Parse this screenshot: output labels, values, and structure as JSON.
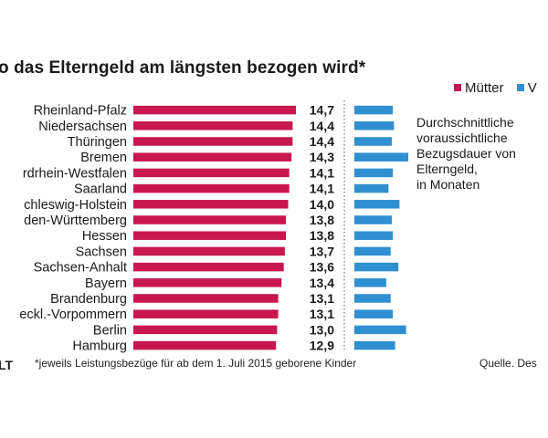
{
  "title": "o das Elterngeld am längsten bezogen wird*",
  "subtitle": "Durchschnittliche\nvoraussichtliche\nBezugsdauer von\nElterngeld,\nin Monaten",
  "legend": [
    {
      "label": "Mütter",
      "color": "#c8174f"
    },
    {
      "label": "V",
      "color": "#2f8fd0"
    }
  ],
  "logo": "LT",
  "footnote": "*jeweils Leistungsbezüge für ab dem 1. Juli 2015 geborene Kinder",
  "source": "Quelle. Des",
  "chart_data": {
    "type": "bar",
    "title": "o das Elterngeld am längsten bezogen wird*",
    "categories": [
      "Rheinland-Pfalz",
      "Niedersachsen",
      "Thüringen",
      "Bremen",
      "rdrhein-Westfalen",
      "Saarland",
      "chleswig-Holstein",
      "den-Württemberg",
      "Hessen",
      "Sachsen",
      "Sachsen-Anhalt",
      "Bayern",
      "Brandenburg",
      "eckl.-Vorpommern",
      "Berlin",
      "Hamburg"
    ],
    "series": [
      {
        "name": "Mütter",
        "color": "#c8174f",
        "values": [
          14.7,
          14.4,
          14.4,
          14.3,
          14.1,
          14.1,
          14.0,
          13.8,
          13.8,
          13.7,
          13.6,
          13.4,
          13.1,
          13.1,
          13.0,
          12.9
        ]
      },
      {
        "name": "V",
        "color": "#2f8fd0",
        "values": [
          3.5,
          3.6,
          3.4,
          4.9,
          3.5,
          3.1,
          4.1,
          3.4,
          3.5,
          3.3,
          4.0,
          2.9,
          3.3,
          3.5,
          4.7,
          3.7
        ]
      }
    ],
    "value_labels": [
      "14,7",
      "14,4",
      "14,4",
      "14,3",
      "14,1",
      "14,1",
      "14,0",
      "13,8",
      "13,8",
      "13,7",
      "13,6",
      "13,4",
      "13,1",
      "13,1",
      "13,0",
      "12,9"
    ],
    "grid": false,
    "legend_position": "top-right"
  }
}
